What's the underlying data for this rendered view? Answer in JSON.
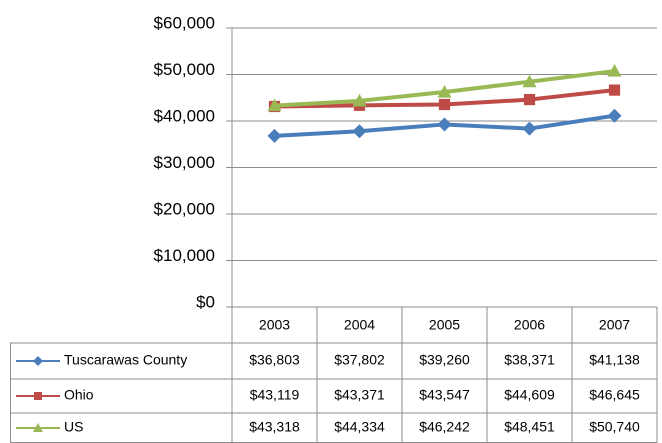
{
  "chart_data": {
    "type": "line",
    "categories": [
      "2003",
      "2004",
      "2005",
      "2006",
      "2007"
    ],
    "series": [
      {
        "name": "Tuscarawas County",
        "color": "#4a7ebb",
        "marker": "diamond",
        "values": [
          36803,
          37802,
          39260,
          38371,
          41138
        ],
        "value_labels": [
          "$36,803",
          "$37,802",
          "$39,260",
          "$38,371",
          "$41,138"
        ]
      },
      {
        "name": "Ohio",
        "color": "#be4b48",
        "marker": "square",
        "values": [
          43119,
          43371,
          43547,
          44609,
          46645
        ],
        "value_labels": [
          "$43,119",
          "$43,371",
          "$43,547",
          "$44,609",
          "$46,645"
        ]
      },
      {
        "name": "US",
        "color": "#98b954",
        "marker": "triangle",
        "values": [
          43318,
          44334,
          46242,
          48451,
          50740
        ],
        "value_labels": [
          "$43,318",
          "$44,334",
          "$46,242",
          "$48,451",
          "$50,740"
        ]
      }
    ],
    "ylim": [
      0,
      60000
    ],
    "yticks": [
      {
        "value": 0,
        "label": "$0"
      },
      {
        "value": 10000,
        "label": "$10,000"
      },
      {
        "value": 20000,
        "label": "$20,000"
      },
      {
        "value": 30000,
        "label": "$30,000"
      },
      {
        "value": 40000,
        "label": "$40,000"
      },
      {
        "value": 50000,
        "label": "$50,000"
      },
      {
        "value": 60000,
        "label": "$60,000"
      }
    ],
    "grid": true
  }
}
